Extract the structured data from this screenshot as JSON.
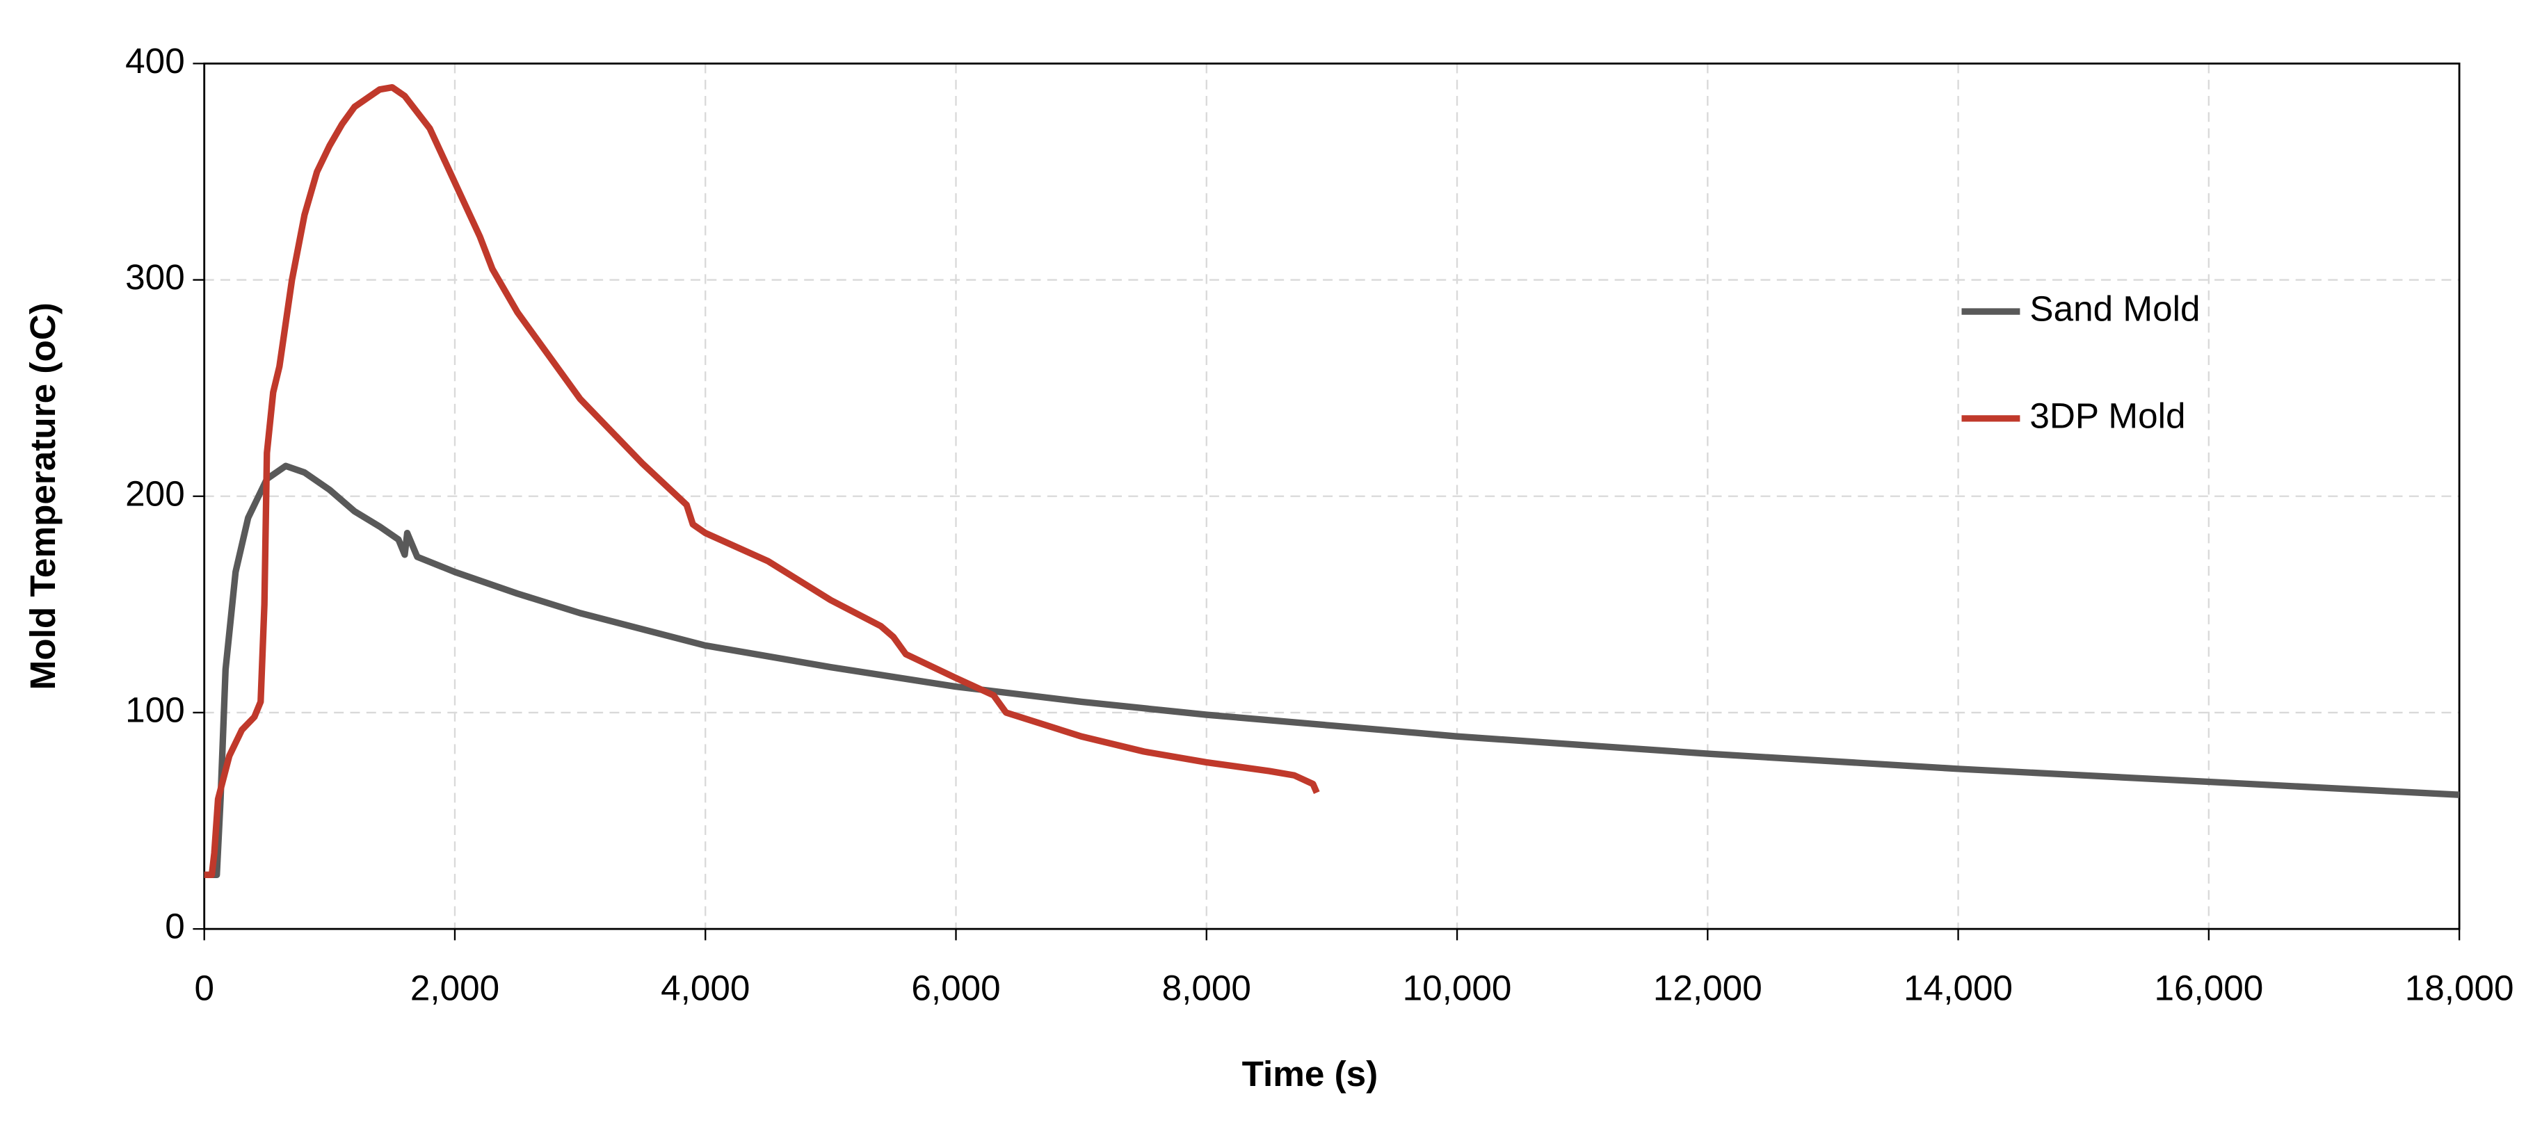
{
  "chart_data": {
    "type": "line",
    "x_label": "Time (s)",
    "y_label": "Mold Temperature  (oC)",
    "xlim": [
      0,
      18000
    ],
    "ylim": [
      0,
      400
    ],
    "xticks": [
      0,
      {
        "value": 2000,
        "label": "2,000"
      },
      {
        "value": 4000,
        "label": "4,000"
      },
      {
        "value": 6000,
        "label": "6,000"
      },
      {
        "value": 8000,
        "label": "8,000"
      },
      {
        "value": 10000,
        "label": "10,000"
      },
      {
        "value": 12000,
        "label": "12,000"
      },
      {
        "value": 14000,
        "label": "14,000"
      },
      {
        "value": 16000,
        "label": "16,000"
      },
      {
        "value": 18000,
        "label": "18,000"
      }
    ],
    "yticks": [
      0,
      100,
      200,
      300,
      400
    ],
    "grid": true,
    "legend": "right",
    "series": [
      {
        "name": "Sand Mold",
        "color": "#595959",
        "x": [
          0,
          100,
          130,
          170,
          250,
          350,
          500,
          650,
          800,
          1000,
          1200,
          1400,
          1550,
          1600,
          1620,
          1700,
          2000,
          2500,
          3000,
          4000,
          5000,
          6000,
          7000,
          8000,
          9000,
          10000,
          12000,
          14000,
          16000,
          18000
        ],
        "values": [
          25,
          25,
          60,
          120,
          165,
          190,
          208,
          214,
          211,
          203,
          193,
          186,
          180,
          173,
          183,
          172,
          165,
          155,
          146,
          131,
          121,
          112,
          105,
          99,
          94,
          89,
          81,
          74,
          68,
          62
        ]
      },
      {
        "name": "3DP Mold",
        "color": "#c0392b",
        "x": [
          0,
          60,
          80,
          110,
          200,
          300,
          400,
          450,
          480,
          500,
          550,
          600,
          700,
          800,
          900,
          1000,
          1100,
          1200,
          1300,
          1400,
          1500,
          1600,
          1800,
          2000,
          2200,
          2300,
          2500,
          3000,
          3500,
          3850,
          3900,
          4000,
          4500,
          5000,
          5400,
          5500,
          5600,
          6000,
          6300,
          6400,
          7000,
          7500,
          8000,
          8500,
          8700,
          8850,
          8880
        ],
        "values": [
          25,
          25,
          35,
          60,
          80,
          92,
          98,
          105,
          150,
          220,
          248,
          260,
          300,
          330,
          350,
          362,
          372,
          380,
          384,
          388,
          389,
          385,
          370,
          345,
          320,
          305,
          285,
          245,
          215,
          196,
          187,
          183,
          170,
          152,
          140,
          135,
          127,
          116,
          108,
          100,
          89,
          82,
          77,
          73,
          71,
          67,
          63
        ]
      }
    ]
  }
}
